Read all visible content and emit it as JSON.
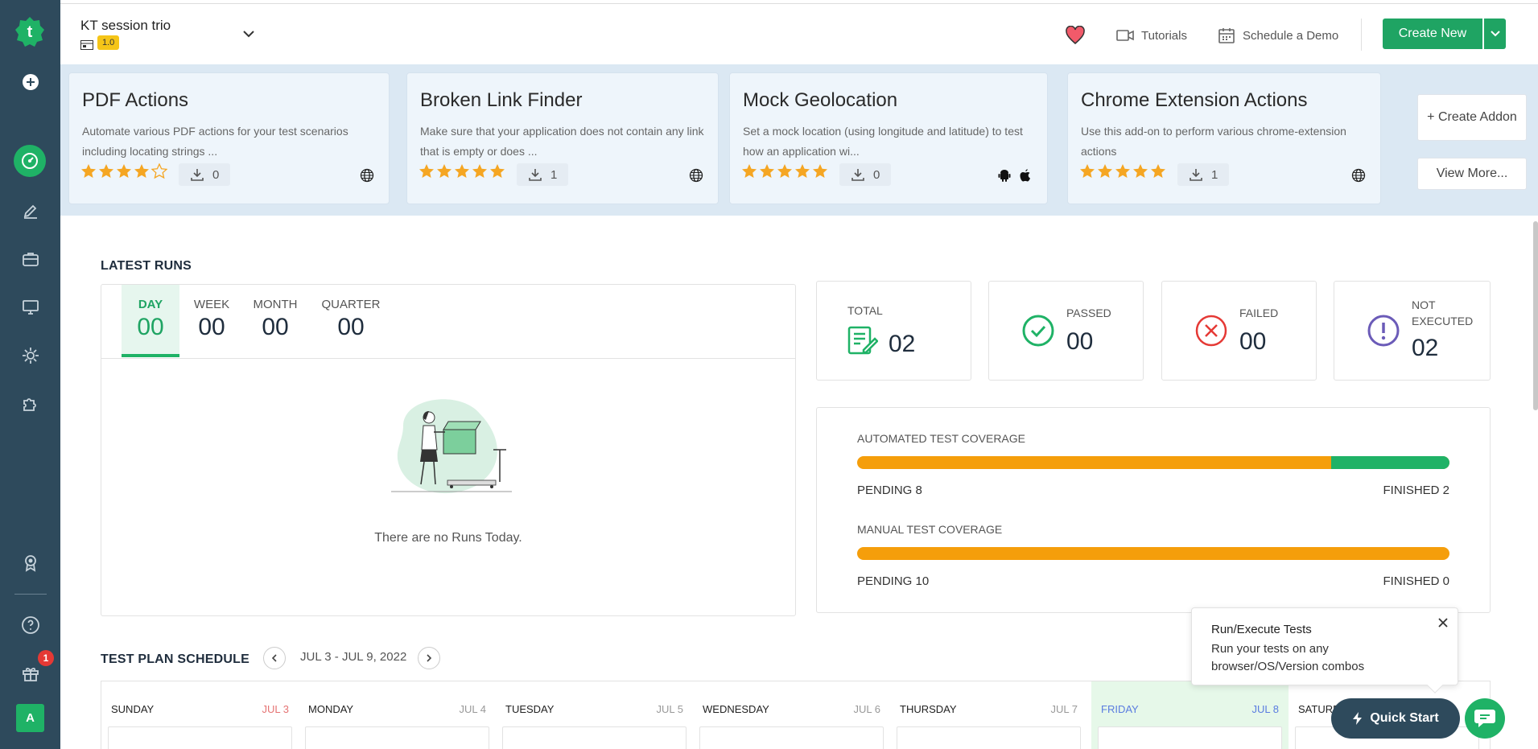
{
  "colors": {
    "sidebar": "#2e4a5c",
    "accent": "#1fb266",
    "warning": "#f59e0b",
    "danger": "#e53935",
    "purple": "#6b5bb8"
  },
  "sidebar": {
    "items": [
      "add-icon",
      "dashboard-icon",
      "edit-icon",
      "briefcase-icon",
      "monitor-icon",
      "settings-icon",
      "puzzle-icon",
      "award-icon",
      "help-icon",
      "gift-icon"
    ],
    "gift_badge": "1",
    "avatar": "A"
  },
  "header": {
    "project_name": "KT session trio",
    "version": "1.0",
    "tutorials": "Tutorials",
    "schedule_demo": "Schedule a Demo",
    "create_new": "Create New"
  },
  "addons": [
    {
      "title": "PDF Actions",
      "desc": "Automate various PDF actions for your test scenarios including locating strings ...",
      "rating": 4,
      "downloads": "0",
      "platforms": [
        "globe-icon"
      ]
    },
    {
      "title": "Broken Link Finder",
      "desc": "Make sure that your application does not contain any link that is empty or does ...",
      "rating": 5,
      "downloads": "1",
      "platforms": [
        "globe-icon"
      ]
    },
    {
      "title": "Mock Geolocation",
      "desc": "Set a mock location (using longitude and latitude) to test how an application wi...",
      "rating": 5,
      "downloads": "0",
      "platforms": [
        "android-icon",
        "apple-icon"
      ]
    },
    {
      "title": "Chrome Extension Actions",
      "desc": "Use this add-on to perform various chrome-extension actions",
      "rating": 5,
      "downloads": "1",
      "platforms": [
        "globe-icon"
      ]
    }
  ],
  "addon_actions": {
    "create": "+ Create Addon",
    "view_more": "View More..."
  },
  "latest_runs": {
    "title": "LATEST RUNS",
    "tabs": [
      {
        "label": "DAY",
        "value": "00"
      },
      {
        "label": "WEEK",
        "value": "00"
      },
      {
        "label": "MONTH",
        "value": "00"
      },
      {
        "label": "QUARTER",
        "value": "00"
      }
    ],
    "active_tab": "DAY",
    "empty_text": "There are no Runs Today."
  },
  "stats": {
    "total": {
      "label": "TOTAL",
      "value": "02"
    },
    "passed": {
      "label": "PASSED",
      "value": "00"
    },
    "failed": {
      "label": "FAILED",
      "value": "00"
    },
    "not_executed": {
      "label_1": "NOT",
      "label_2": "EXECUTED",
      "value": "02"
    }
  },
  "coverage": {
    "automated": {
      "title": "AUTOMATED TEST COVERAGE",
      "pending": "PENDING 8",
      "finished": "FINISHED 2",
      "finished_fraction": 0.2
    },
    "manual": {
      "title": "MANUAL TEST COVERAGE",
      "pending": "PENDING 10",
      "finished": "FINISHED 0",
      "finished_fraction": 0
    }
  },
  "schedule": {
    "title": "TEST PLAN SCHEDULE",
    "range": "JUL 3 - JUL 9, 2022",
    "days": [
      {
        "name": "SUNDAY",
        "date": "JUL 3"
      },
      {
        "name": "MONDAY",
        "date": "JUL 4"
      },
      {
        "name": "TUESDAY",
        "date": "JUL 5"
      },
      {
        "name": "WEDNESDAY",
        "date": "JUL 6"
      },
      {
        "name": "THURSDAY",
        "date": "JUL 7"
      },
      {
        "name": "FRIDAY",
        "date": "JUL 8"
      },
      {
        "name": "SATURD",
        "date": ""
      }
    ]
  },
  "tooltip": {
    "title": "Run/Execute Tests",
    "body": "Run your tests on any browser/OS/Version combos"
  },
  "quick_start": "Quick Start"
}
